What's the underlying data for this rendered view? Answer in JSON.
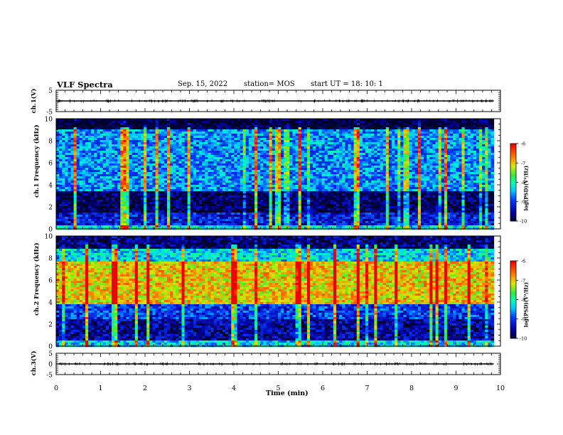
{
  "header": {
    "title": "VLF Spectra",
    "date": "Sep. 15, 2022",
    "station": "station= MOS",
    "start": "start  UT =   18: 10: 1"
  },
  "chart_data": [
    {
      "type": "line",
      "ylabel": "ch.1(V)",
      "ylim": [
        -5,
        5
      ],
      "yticks": [
        "5",
        "-5"
      ],
      "x": [
        0,
        9.85
      ],
      "values": [
        0,
        0
      ]
    },
    {
      "type": "heatmap",
      "ylabel": "ch.1 Frequency (kHz)",
      "ylim": [
        0,
        10
      ],
      "yticks": [
        "0",
        "2",
        "4",
        "6",
        "8",
        "10"
      ],
      "xlim": [
        0,
        10
      ],
      "data_xmax": 9.85,
      "colorbar": {
        "label": "log(PSD)(V²/Hz)",
        "ticks": [
          "-6",
          "-7",
          "-8",
          "-9",
          "-10"
        ],
        "range": [
          -10,
          -6
        ]
      },
      "bands": [
        {
          "f": [
            0,
            0.3
          ],
          "level": -8.2
        },
        {
          "f": [
            0.3,
            1.5
          ],
          "level": -9.2
        },
        {
          "f": [
            1.5,
            3.5
          ],
          "level": -9.8
        },
        {
          "f": [
            3.5,
            9.0
          ],
          "level": -8.6
        },
        {
          "f": [
            9.0,
            10
          ],
          "level": -10
        }
      ],
      "streaks": "sferic vertical streaks reaching about -7"
    },
    {
      "type": "heatmap",
      "ylabel": "ch.2 Frequency (kHz)",
      "ylim": [
        0,
        10
      ],
      "yticks": [
        "0",
        "2",
        "4",
        "6",
        "8",
        "10"
      ],
      "xlim": [
        0,
        10
      ],
      "data_xmax": 9.85,
      "colorbar": {
        "label": "log(PSD)(V²/Hz)",
        "ticks": [
          "-6",
          "-7",
          "-8",
          "-9",
          "-10"
        ],
        "range": [
          -10,
          -6
        ]
      },
      "bands": [
        {
          "f": [
            0,
            0.5
          ],
          "level": -8.3
        },
        {
          "f": [
            0.5,
            2.5
          ],
          "level": -9.5
        },
        {
          "f": [
            2.5,
            3.8
          ],
          "level": -9.0
        },
        {
          "f": [
            3.8,
            7.6
          ],
          "level": -7.0
        },
        {
          "f": [
            7.6,
            8.8
          ],
          "level": -8.3
        },
        {
          "f": [
            8.8,
            10
          ],
          "level": -9.7
        }
      ]
    },
    {
      "type": "line",
      "ylabel": "ch.3(V)",
      "ylim": [
        -5,
        5
      ],
      "yticks": [
        "5",
        "0",
        "-5"
      ],
      "x": [
        0,
        9.85
      ],
      "values": [
        0,
        0
      ]
    }
  ],
  "xaxis": {
    "label": "Time  (min)",
    "ticks": [
      "0",
      "1",
      "2",
      "3",
      "4",
      "5",
      "6",
      "7",
      "8",
      "9",
      "10"
    ]
  }
}
